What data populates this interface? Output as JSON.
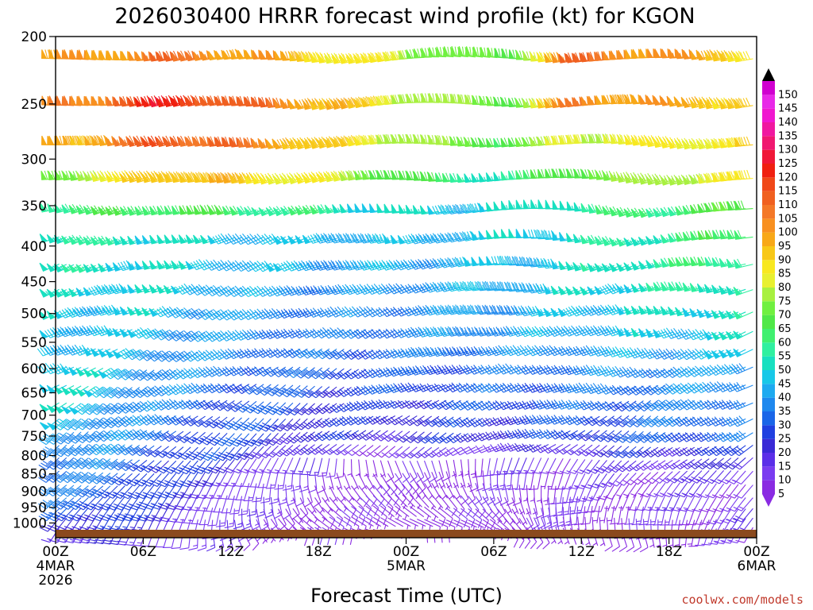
{
  "chart_data": {
    "type": "wind-barb time-height profile",
    "title": "2026030400 HRRR forecast wind profile (kt) for KGON",
    "xlabel": "Forecast Time (UTC)",
    "ylabel": "",
    "credit": "coolwx.com/models",
    "y_axis": {
      "scale": "log-pressure",
      "ticks": [
        "200",
        "250",
        "300",
        "350",
        "400",
        "450",
        "500",
        "550",
        "600",
        "650",
        "700",
        "750",
        "800",
        "850",
        "900",
        "950",
        "1000"
      ],
      "range": [
        200,
        1050
      ]
    },
    "x_axis": {
      "range_hours": [
        0,
        48
      ],
      "ticks": [
        {
          "hour": 0,
          "lines": [
            "00Z",
            "4MAR",
            "2026"
          ]
        },
        {
          "hour": 6,
          "lines": [
            "06Z"
          ]
        },
        {
          "hour": 12,
          "lines": [
            "12Z"
          ]
        },
        {
          "hour": 18,
          "lines": [
            "18Z"
          ]
        },
        {
          "hour": 24,
          "lines": [
            "00Z",
            "5MAR"
          ]
        },
        {
          "hour": 30,
          "lines": [
            "06Z"
          ]
        },
        {
          "hour": 36,
          "lines": [
            "12Z"
          ]
        },
        {
          "hour": 42,
          "lines": [
            "18Z"
          ]
        },
        {
          "hour": 48,
          "lines": [
            "00Z",
            "6MAR"
          ]
        }
      ]
    },
    "colorbar": {
      "units": "kt",
      "labels": [
        "5",
        "10",
        "15",
        "20",
        "25",
        "30",
        "35",
        "40",
        "45",
        "50",
        "55",
        "60",
        "65",
        "70",
        "75",
        "80",
        "85",
        "90",
        "95",
        "100",
        "105",
        "110",
        "115",
        "120",
        "125",
        "130",
        "135",
        "140",
        "145",
        "150"
      ],
      "colors": [
        "#8a2be2",
        "#7a3cf0",
        "#5b2fe8",
        "#3a2ad6",
        "#2040e0",
        "#1a66e8",
        "#1e88ee",
        "#1eaaf0",
        "#18c8e8",
        "#18e0c0",
        "#30f0a0",
        "#40f070",
        "#50e848",
        "#70f040",
        "#a8f040",
        "#e8f030",
        "#f8e820",
        "#f8c818",
        "#f8a818",
        "#f89020",
        "#f47828",
        "#f06020",
        "#f04818",
        "#f02010",
        "#f01838",
        "#f01870",
        "#f018a0",
        "#f018d0",
        "#e828e8",
        "#d000d0"
      ],
      "marker_color": "#000000"
    },
    "terrain": {
      "color": "#8b4a1e",
      "top_pressure": 1035
    },
    "sampling": {
      "time_step_hours": 0.5,
      "levels_hpa": [
        215,
        250,
        285,
        320,
        355,
        390,
        425,
        460,
        495,
        530,
        565,
        600,
        635,
        670,
        705,
        740,
        775,
        810,
        845,
        880,
        915,
        950,
        985,
        1020
      ]
    },
    "wind_field": {
      "description_units": "speed kt, direction deg (meteorological, from)",
      "levels": [
        {
          "p": 215,
          "speed": [
            95,
            100,
            108,
            102,
            96,
            88,
            80,
            72,
            68,
            110,
            104,
            98,
            92
          ],
          "dir": [
            270,
            268,
            265,
            262,
            260,
            262,
            265,
            270,
            275,
            265,
            262,
            264,
            266
          ]
        },
        {
          "p": 250,
          "speed": [
            100,
            108,
            122,
            115,
            105,
            95,
            82,
            75,
            70,
            104,
            100,
            96,
            92
          ],
          "dir": [
            268,
            266,
            262,
            260,
            258,
            260,
            264,
            268,
            272,
            262,
            260,
            262,
            264
          ]
        },
        {
          "p": 285,
          "speed": [
            95,
            100,
            115,
            110,
            100,
            90,
            80,
            72,
            68,
            82,
            84,
            86,
            88
          ],
          "dir": [
            265,
            263,
            260,
            258,
            257,
            260,
            262,
            266,
            270,
            262,
            260,
            262,
            264
          ]
        },
        {
          "p": 320,
          "speed": [
            75,
            80,
            96,
            92,
            88,
            80,
            70,
            60,
            55,
            72,
            75,
            80,
            85
          ],
          "dir": [
            262,
            260,
            258,
            256,
            255,
            258,
            262,
            266,
            270,
            262,
            258,
            260,
            262
          ]
        },
        {
          "p": 355,
          "speed": [
            60,
            62,
            66,
            64,
            60,
            55,
            50,
            48,
            50,
            56,
            60,
            64,
            68
          ],
          "dir": [
            258,
            256,
            255,
            254,
            252,
            255,
            260,
            264,
            268,
            262,
            256,
            258,
            260
          ]
        },
        {
          "p": 390,
          "speed": [
            55,
            56,
            52,
            48,
            46,
            45,
            44,
            45,
            48,
            52,
            56,
            60,
            64
          ],
          "dir": [
            255,
            253,
            252,
            250,
            250,
            252,
            256,
            260,
            264,
            260,
            254,
            256,
            258
          ]
        },
        {
          "p": 425,
          "speed": [
            52,
            52,
            50,
            46,
            44,
            42,
            42,
            44,
            46,
            50,
            54,
            58,
            62
          ],
          "dir": [
            252,
            250,
            250,
            248,
            247,
            250,
            254,
            258,
            262,
            258,
            252,
            254,
            256
          ]
        },
        {
          "p": 460,
          "speed": [
            50,
            50,
            48,
            44,
            40,
            38,
            40,
            42,
            44,
            48,
            52,
            56,
            58
          ],
          "dir": [
            250,
            248,
            247,
            245,
            245,
            248,
            252,
            256,
            260,
            256,
            250,
            252,
            254
          ]
        },
        {
          "p": 495,
          "speed": [
            48,
            48,
            46,
            42,
            38,
            36,
            38,
            40,
            42,
            46,
            50,
            52,
            54
          ],
          "dir": [
            248,
            246,
            245,
            243,
            242,
            245,
            250,
            254,
            258,
            254,
            248,
            250,
            252
          ]
        },
        {
          "p": 530,
          "speed": [
            48,
            46,
            44,
            40,
            36,
            34,
            36,
            38,
            40,
            44,
            46,
            48,
            50
          ],
          "dir": [
            246,
            244,
            243,
            241,
            240,
            243,
            248,
            252,
            256,
            252,
            246,
            248,
            250
          ]
        },
        {
          "p": 565,
          "speed": [
            48,
            46,
            42,
            38,
            34,
            32,
            34,
            36,
            38,
            40,
            42,
            44,
            46
          ],
          "dir": [
            244,
            242,
            241,
            239,
            238,
            241,
            246,
            250,
            254,
            250,
            244,
            246,
            248
          ]
        },
        {
          "p": 600,
          "speed": [
            50,
            46,
            40,
            36,
            32,
            30,
            30,
            32,
            34,
            36,
            38,
            40,
            42
          ],
          "dir": [
            242,
            240,
            239,
            237,
            236,
            239,
            244,
            248,
            252,
            248,
            242,
            244,
            246
          ]
        },
        {
          "p": 635,
          "speed": [
            50,
            45,
            38,
            34,
            30,
            28,
            28,
            30,
            32,
            34,
            36,
            38,
            40
          ],
          "dir": [
            240,
            238,
            237,
            235,
            234,
            237,
            242,
            246,
            250,
            246,
            240,
            242,
            244
          ]
        },
        {
          "p": 670,
          "speed": [
            48,
            44,
            36,
            32,
            28,
            26,
            26,
            28,
            30,
            32,
            34,
            36,
            38
          ],
          "dir": [
            238,
            236,
            235,
            233,
            232,
            235,
            240,
            244,
            248,
            244,
            238,
            240,
            242
          ]
        },
        {
          "p": 705,
          "speed": [
            45,
            42,
            34,
            30,
            26,
            24,
            24,
            26,
            28,
            30,
            32,
            34,
            36
          ],
          "dir": [
            236,
            234,
            233,
            231,
            230,
            233,
            238,
            242,
            246,
            242,
            236,
            238,
            240
          ]
        },
        {
          "p": 740,
          "speed": [
            42,
            40,
            32,
            28,
            24,
            22,
            22,
            24,
            26,
            28,
            30,
            32,
            34
          ],
          "dir": [
            234,
            232,
            231,
            229,
            228,
            231,
            236,
            240,
            244,
            240,
            234,
            236,
            238
          ]
        },
        {
          "p": 775,
          "speed": [
            40,
            38,
            30,
            26,
            20,
            14,
            12,
            14,
            16,
            20,
            22,
            24,
            26
          ],
          "dir": [
            232,
            230,
            229,
            227,
            226,
            230,
            236,
            240,
            244,
            240,
            232,
            234,
            236
          ]
        },
        {
          "p": 810,
          "speed": [
            38,
            36,
            28,
            22,
            14,
            10,
            8,
            10,
            12,
            14,
            16,
            18,
            20
          ],
          "dir": [
            230,
            228,
            227,
            225,
            200,
            180,
            160,
            170,
            200,
            220,
            230,
            232,
            234
          ]
        },
        {
          "p": 845,
          "speed": [
            36,
            34,
            26,
            18,
            10,
            8,
            6,
            8,
            10,
            12,
            12,
            14,
            16
          ],
          "dir": [
            228,
            226,
            225,
            210,
            180,
            160,
            150,
            160,
            190,
            210,
            220,
            226,
            228
          ]
        },
        {
          "p": 880,
          "speed": [
            34,
            32,
            24,
            16,
            10,
            8,
            6,
            8,
            10,
            10,
            10,
            12,
            14
          ],
          "dir": [
            226,
            224,
            222,
            200,
            170,
            150,
            140,
            150,
            180,
            200,
            210,
            220,
            224
          ]
        },
        {
          "p": 915,
          "speed": [
            32,
            30,
            22,
            14,
            10,
            8,
            6,
            8,
            10,
            10,
            10,
            12,
            14
          ],
          "dir": [
            224,
            222,
            218,
            190,
            160,
            140,
            130,
            140,
            170,
            190,
            200,
            214,
            220
          ]
        },
        {
          "p": 950,
          "speed": [
            30,
            28,
            20,
            12,
            10,
            8,
            6,
            8,
            10,
            10,
            10,
            12,
            14
          ],
          "dir": [
            222,
            220,
            210,
            180,
            150,
            130,
            120,
            130,
            160,
            180,
            190,
            206,
            216
          ]
        },
        {
          "p": 985,
          "speed": [
            26,
            24,
            18,
            12,
            8,
            6,
            6,
            6,
            8,
            8,
            8,
            10,
            12
          ],
          "dir": [
            220,
            216,
            200,
            170,
            140,
            120,
            110,
            120,
            150,
            170,
            180,
            200,
            212
          ]
        },
        {
          "p": 1020,
          "speed": [
            20,
            18,
            14,
            10,
            8,
            6,
            5,
            6,
            6,
            6,
            6,
            8,
            10
          ],
          "dir": [
            216,
            210,
            190,
            160,
            130,
            110,
            100,
            110,
            140,
            160,
            170,
            190,
            206
          ]
        }
      ]
    }
  }
}
